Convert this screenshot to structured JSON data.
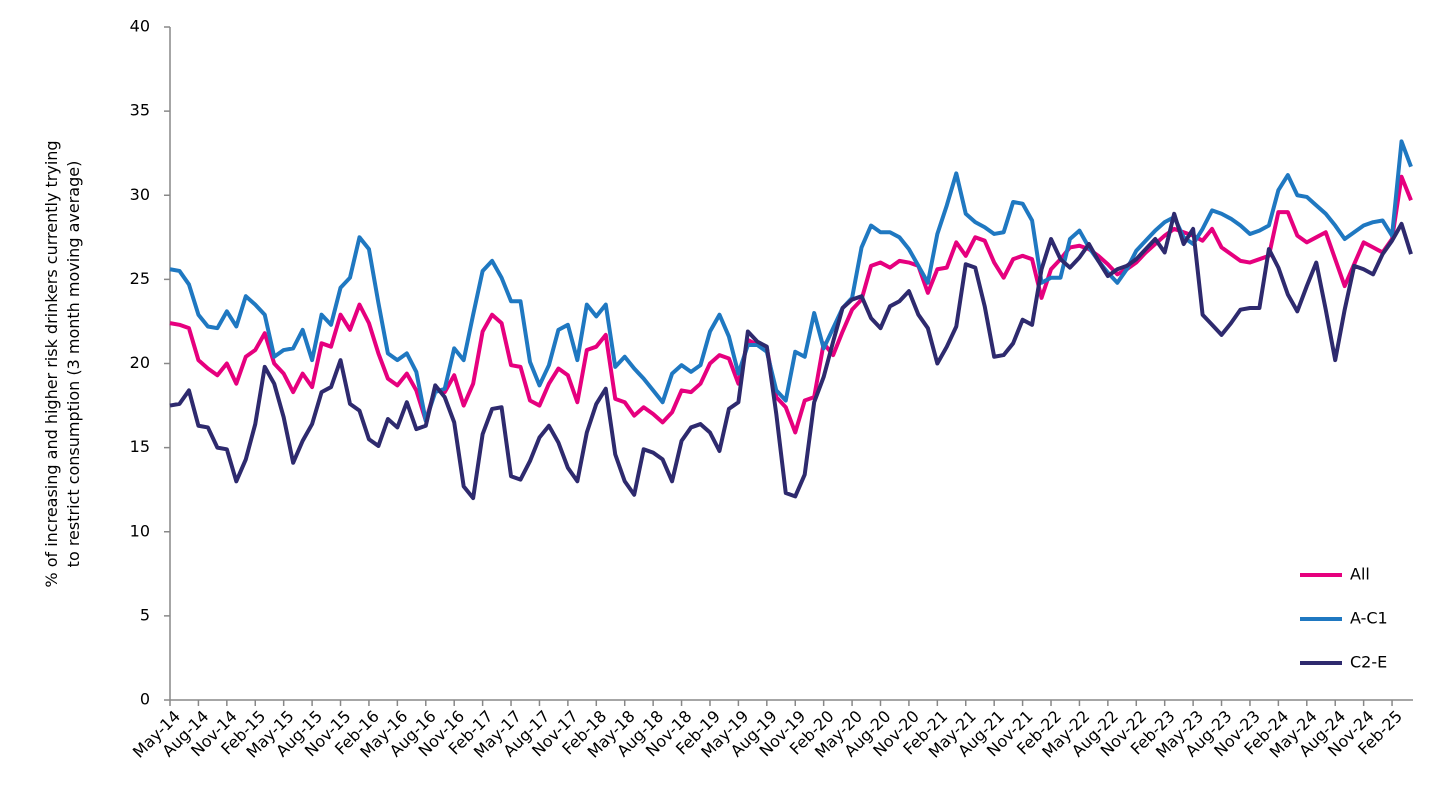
{
  "chart_data": {
    "type": "line",
    "y_label": "% of increasing and higher risk drinkers currently trying to restrict consumption (3 month moving average)",
    "categories": [
      "May-14",
      null,
      null,
      "Aug-14",
      null,
      null,
      "Nov-14",
      null,
      null,
      "Feb-15",
      null,
      null,
      "May-15",
      null,
      null,
      "Aug-15",
      null,
      null,
      "Nov-15",
      null,
      null,
      "Feb-16",
      null,
      null,
      "May-16",
      null,
      null,
      "Aug-16",
      null,
      null,
      "Nov-16",
      null,
      null,
      "Feb-17",
      null,
      null,
      "May-17",
      null,
      null,
      "Aug-17",
      null,
      null,
      "Nov-17",
      null,
      null,
      "Feb-18",
      null,
      null,
      "May-18",
      null,
      null,
      "Aug-18",
      null,
      null,
      "Nov-18",
      null,
      null,
      "Feb-19",
      null,
      null,
      "May-19",
      null,
      null,
      "Aug-19",
      null,
      null,
      "Nov-19",
      null,
      null,
      "Feb-20",
      null,
      null,
      "May-20",
      null,
      null,
      "Aug-20",
      null,
      null,
      "Nov-20",
      null,
      null,
      "Feb-21",
      null,
      null,
      "May-21",
      null,
      null,
      "Aug-21",
      null,
      null,
      "Nov-21",
      null,
      null,
      "Feb-22",
      null,
      null,
      "May-22",
      null,
      null,
      "Aug-22",
      null,
      null,
      "Nov-22",
      null,
      null,
      "Feb-23",
      null,
      null,
      "May-23",
      null,
      null,
      "Aug-23",
      null,
      null,
      "Nov-23",
      null,
      null,
      "Feb-24",
      null,
      null,
      "May-24",
      null,
      null,
      "Aug-24",
      null,
      null,
      "Nov-24",
      null,
      null,
      "Feb-25",
      null,
      null
    ],
    "series": [
      {
        "name": "All",
        "color": "#e6007e",
        "values": [
          22.4,
          22.3,
          22.1,
          20.2,
          19.7,
          19.3,
          20.0,
          18.8,
          20.4,
          20.8,
          21.8,
          20.0,
          19.4,
          18.3,
          19.4,
          18.6,
          21.2,
          21.0,
          22.9,
          22.0,
          23.5,
          22.4,
          20.6,
          19.1,
          18.7,
          19.4,
          18.4,
          16.6,
          18.5,
          18.3,
          19.3,
          17.5,
          18.8,
          21.9,
          22.9,
          22.4,
          19.9,
          19.8,
          17.8,
          17.5,
          18.8,
          19.7,
          19.3,
          17.7,
          20.8,
          21.0,
          21.7,
          17.9,
          17.7,
          16.9,
          17.4,
          17.0,
          16.5,
          17.1,
          18.4,
          18.3,
          18.8,
          20.0,
          20.5,
          20.3,
          18.8,
          21.4,
          21.1,
          20.9,
          18.0,
          17.4,
          15.9,
          17.8,
          18.0,
          21.2,
          20.5,
          21.9,
          23.2,
          23.8,
          25.8,
          26.0,
          25.7,
          26.1,
          26.0,
          25.8,
          24.2,
          25.6,
          25.7,
          27.2,
          26.4,
          27.5,
          27.3,
          26.0,
          25.1,
          26.2,
          26.4,
          26.2,
          23.9,
          25.6,
          26.2,
          26.9,
          27.0,
          26.8,
          26.4,
          25.9,
          25.3,
          25.6,
          26.0,
          26.6,
          27.1,
          27.6,
          28.0,
          27.8,
          27.6,
          27.3,
          28.0,
          26.9,
          26.5,
          26.1,
          26.0,
          26.2,
          26.4,
          29.0,
          29.0,
          27.6,
          27.2,
          27.5,
          27.8,
          26.2,
          24.6,
          25.9,
          27.2,
          26.9,
          26.6,
          27.4,
          31.1,
          29.7
        ]
      },
      {
        "name": "A-C1",
        "color": "#1f78c1",
        "values": [
          25.6,
          25.5,
          24.7,
          22.9,
          22.2,
          22.1,
          23.1,
          22.2,
          24.0,
          23.5,
          22.9,
          20.4,
          20.8,
          20.9,
          22.0,
          20.2,
          22.9,
          22.3,
          24.5,
          25.1,
          27.5,
          26.8,
          23.6,
          20.6,
          20.2,
          20.6,
          19.5,
          16.6,
          18.3,
          18.5,
          20.9,
          20.2,
          22.9,
          25.5,
          26.1,
          25.1,
          23.7,
          23.7,
          20.1,
          18.7,
          19.9,
          22.0,
          22.3,
          20.2,
          23.5,
          22.8,
          23.5,
          19.8,
          20.4,
          19.7,
          19.1,
          18.4,
          17.7,
          19.4,
          19.9,
          19.5,
          19.9,
          21.9,
          22.9,
          21.6,
          19.4,
          21.1,
          21.1,
          20.7,
          18.4,
          17.8,
          20.7,
          20.4,
          23.0,
          20.9,
          22.1,
          23.3,
          23.9,
          26.9,
          28.2,
          27.8,
          27.8,
          27.5,
          26.8,
          25.8,
          24.8,
          27.7,
          29.4,
          31.3,
          28.9,
          28.4,
          28.1,
          27.7,
          27.8,
          29.6,
          29.5,
          28.5,
          24.8,
          25.1,
          25.1,
          27.4,
          27.9,
          26.9,
          26.1,
          25.4,
          24.8,
          25.6,
          26.7,
          27.3,
          27.9,
          28.4,
          28.7,
          27.5,
          27.1,
          28.0,
          29.1,
          28.9,
          28.6,
          28.2,
          27.7,
          27.9,
          28.2,
          30.3,
          31.2,
          30.0,
          29.9,
          29.4,
          28.9,
          28.2,
          27.4,
          27.8,
          28.2,
          28.4,
          28.5,
          27.6,
          33.2,
          31.7
        ]
      },
      {
        "name": "C2-E",
        "color": "#2e2a6e",
        "values": [
          17.5,
          17.6,
          18.4,
          16.3,
          16.2,
          15.0,
          14.9,
          13.0,
          14.3,
          16.4,
          19.8,
          18.8,
          16.8,
          14.1,
          15.4,
          16.4,
          18.3,
          18.6,
          20.2,
          17.6,
          17.2,
          15.5,
          15.1,
          16.7,
          16.2,
          17.7,
          16.1,
          16.3,
          18.7,
          18.0,
          16.5,
          12.7,
          12.0,
          15.8,
          17.3,
          17.4,
          13.3,
          13.1,
          14.2,
          15.6,
          16.3,
          15.3,
          13.8,
          13.0,
          15.9,
          17.6,
          18.5,
          14.6,
          13.0,
          12.2,
          14.9,
          14.7,
          14.3,
          13.0,
          15.4,
          16.2,
          16.4,
          15.9,
          14.8,
          17.3,
          17.7,
          21.9,
          21.3,
          21.0,
          17.0,
          12.3,
          12.1,
          13.4,
          17.7,
          19.2,
          21.3,
          23.3,
          23.8,
          24.0,
          22.7,
          22.1,
          23.4,
          23.7,
          24.3,
          22.9,
          22.1,
          20.0,
          21.0,
          22.2,
          25.9,
          25.7,
          23.4,
          20.4,
          20.5,
          21.2,
          22.6,
          22.3,
          25.6,
          27.4,
          26.2,
          25.7,
          26.3,
          27.1,
          26.1,
          25.2,
          25.6,
          25.8,
          26.2,
          26.8,
          27.4,
          26.6,
          28.9,
          27.1,
          28.0,
          22.9,
          22.3,
          21.7,
          22.4,
          23.2,
          23.3,
          23.3,
          26.8,
          25.7,
          24.1,
          23.1,
          24.6,
          26.0,
          23.2,
          20.2,
          23.2,
          25.8,
          25.6,
          25.3,
          26.5,
          27.3,
          28.3,
          26.5
        ]
      }
    ],
    "ylim": [
      0,
      40
    ],
    "yticks": [
      0,
      5,
      10,
      15,
      20,
      25,
      30,
      35,
      40
    ],
    "grid": false,
    "legend": "lower right"
  }
}
